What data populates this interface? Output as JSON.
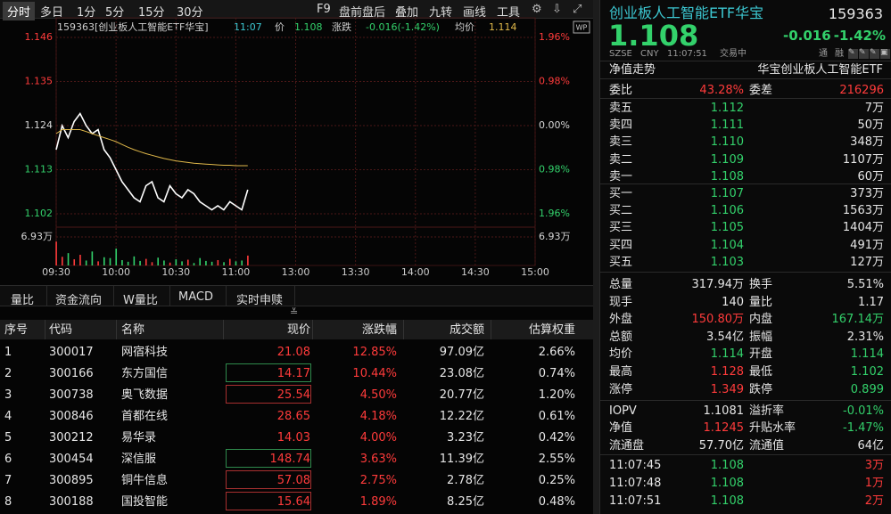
{
  "toolbar": {
    "tabs": [
      "分时",
      "多日",
      "1分",
      "5分",
      "15分",
      "30分"
    ],
    "tools": [
      "F9",
      "盘前盘后",
      "叠加",
      "九转",
      "画线",
      "工具"
    ]
  },
  "chart_header": {
    "security": "159363[创业板人工智能ETF华宝]",
    "time": "11:07",
    "price_label": "价",
    "price": "1.108",
    "change_label": "涨跌",
    "change": "-0.016(-1.42%)",
    "avg_label": "均价",
    "avg": "1.114",
    "badge": "WP"
  },
  "chart_data": {
    "type": "line",
    "x": [
      0,
      3,
      6,
      9,
      12,
      15,
      18,
      21,
      24,
      27,
      30,
      33,
      36,
      39,
      42,
      45,
      48,
      51,
      54,
      57,
      60,
      63,
      66,
      69,
      72,
      75,
      78,
      81,
      84,
      87,
      90,
      93,
      96
    ],
    "xlim": [
      0,
      240
    ],
    "xticks": [
      {
        "value": 0,
        "label": "09:30"
      },
      {
        "value": 30,
        "label": "10:00"
      },
      {
        "value": 60,
        "label": "10:30"
      },
      {
        "value": 90,
        "label": "11:00"
      },
      {
        "value": 120,
        "label": "13:00"
      },
      {
        "value": 150,
        "label": "13:30"
      },
      {
        "value": 180,
        "label": "14:00"
      },
      {
        "value": 210,
        "label": "14:30"
      },
      {
        "value": 240,
        "label": "15:00"
      }
    ],
    "ylim": [
      1.102,
      1.146
    ],
    "yticks": [
      1.146,
      1.135,
      1.124,
      1.113,
      1.102
    ],
    "y2lim": [
      -1.96,
      1.96
    ],
    "y2ticks": [
      {
        "value": 1.96,
        "label": "1.96%"
      },
      {
        "value": 0.98,
        "label": "0.98%"
      },
      {
        "value": 0,
        "label": "0.00%"
      },
      {
        "value": -0.98,
        "label": "0.98%"
      },
      {
        "value": -1.96,
        "label": "1.96%"
      }
    ],
    "series": [
      {
        "name": "价",
        "color": "#ffffff",
        "values": [
          1.118,
          1.124,
          1.121,
          1.125,
          1.127,
          1.124,
          1.122,
          1.123,
          1.118,
          1.116,
          1.113,
          1.11,
          1.108,
          1.106,
          1.105,
          1.109,
          1.11,
          1.106,
          1.105,
          1.109,
          1.107,
          1.106,
          1.108,
          1.107,
          1.105,
          1.104,
          1.103,
          1.104,
          1.103,
          1.105,
          1.104,
          1.103,
          1.108
        ]
      },
      {
        "name": "均价",
        "color": "#e0b84a",
        "values": [
          1.122,
          1.123,
          1.123,
          1.123,
          1.123,
          1.1225,
          1.122,
          1.1215,
          1.121,
          1.1205,
          1.12,
          1.1193,
          1.1186,
          1.118,
          1.1175,
          1.117,
          1.1166,
          1.1162,
          1.1158,
          1.1155,
          1.1152,
          1.115,
          1.1148,
          1.1146,
          1.1145,
          1.1144,
          1.1143,
          1.1142,
          1.1141,
          1.1141,
          1.114,
          1.114,
          1.114
        ]
      }
    ],
    "volume": {
      "values": [
        5.8,
        2.1,
        3.0,
        1.5,
        2.6,
        1.2,
        3.4,
        1.0,
        2.0,
        1.8,
        4.1,
        1.3,
        0.9,
        2.2,
        1.1,
        1.6,
        0.8,
        1.9,
        1.2,
        0.7,
        1.5,
        1.0,
        1.4,
        0.6,
        1.8,
        1.1,
        0.9,
        1.3,
        0.8,
        1.6,
        1.0,
        1.2,
        2.4
      ],
      "ylim": [
        0,
        6.93
      ],
      "yticks": [
        {
          "value": 6.93,
          "label": "6.93万"
        }
      ]
    },
    "grid": true
  },
  "bottom_tabs": [
    "量比",
    "资金流向",
    "W量比",
    "MACD",
    "实时申赎"
  ],
  "table": {
    "columns": [
      "序号",
      "代码",
      "名称",
      "现价",
      "涨跌幅",
      "成交额",
      "估算权重"
    ],
    "rows": [
      [
        "1",
        "300017",
        "网宿科技",
        "21.08",
        "12.85%",
        "97.09亿",
        "2.66%"
      ],
      [
        "2",
        "300166",
        "东方国信",
        "14.17",
        "10.44%",
        "23.08亿",
        "0.74%"
      ],
      [
        "3",
        "300738",
        "奥飞数据",
        "25.54",
        "4.50%",
        "20.77亿",
        "1.20%"
      ],
      [
        "4",
        "300846",
        "首都在线",
        "28.65",
        "4.18%",
        "12.22亿",
        "0.61%"
      ],
      [
        "5",
        "300212",
        "易华录",
        "14.03",
        "4.00%",
        "3.23亿",
        "0.42%"
      ],
      [
        "6",
        "300454",
        "深信服",
        "148.74",
        "3.63%",
        "11.39亿",
        "2.55%"
      ],
      [
        "7",
        "300895",
        "铜牛信息",
        "57.08",
        "2.75%",
        "2.78亿",
        "0.25%"
      ],
      [
        "8",
        "300188",
        "国投智能",
        "15.64",
        "1.89%",
        "8.25亿",
        "0.48%"
      ]
    ]
  },
  "quote": {
    "name": "创业板人工智能ETF华宝",
    "code": "159363",
    "price": "1.108",
    "change": "-0.016",
    "change_pct": "-1.42%",
    "exchange": "SZSE",
    "currency": "CNY",
    "time": "11:07:51",
    "status": "交易中",
    "badges": [
      "通",
      "融"
    ]
  },
  "nav_bar": {
    "label": "净值走势",
    "fund": "华宝创业板人工智能ETF"
  },
  "order_ratio": [
    "委比",
    "43.28%",
    "委差",
    "216296"
  ],
  "asks": [
    [
      "卖五",
      "1.112",
      "7万"
    ],
    [
      "卖四",
      "1.111",
      "50万"
    ],
    [
      "卖三",
      "1.110",
      "348万"
    ],
    [
      "卖二",
      "1.109",
      "1107万"
    ],
    [
      "卖一",
      "1.108",
      "60万"
    ]
  ],
  "bids": [
    [
      "买一",
      "1.107",
      "373万"
    ],
    [
      "买二",
      "1.106",
      "1563万"
    ],
    [
      "买三",
      "1.105",
      "1404万"
    ],
    [
      "买四",
      "1.104",
      "491万"
    ],
    [
      "买五",
      "1.103",
      "127万"
    ]
  ],
  "stats": [
    [
      "总量",
      "317.94万",
      "换手",
      "5.51%"
    ],
    [
      "现手",
      "140",
      "量比",
      "1.17"
    ],
    [
      "外盘",
      "150.80万",
      "内盘",
      "167.14万"
    ],
    [
      "总额",
      "3.54亿",
      "振幅",
      "2.31%"
    ],
    [
      "均价",
      "1.114",
      "开盘",
      "1.114"
    ],
    [
      "最高",
      "1.128",
      "最低",
      "1.102"
    ],
    [
      "涨停",
      "1.349",
      "跌停",
      "0.899"
    ]
  ],
  "fund_stats": [
    [
      "IOPV",
      "1.1081",
      "溢折率",
      "-0.01%"
    ],
    [
      "净值",
      "1.1245",
      "升贴水率",
      "-1.47%"
    ],
    [
      "流通盘",
      "57.70亿",
      "流通值",
      "64亿"
    ]
  ],
  "trades": [
    [
      "11:07:45",
      "1.108",
      "3万"
    ],
    [
      "11:07:48",
      "1.108",
      "1万"
    ],
    [
      "11:07:51",
      "1.108",
      "2万"
    ]
  ]
}
